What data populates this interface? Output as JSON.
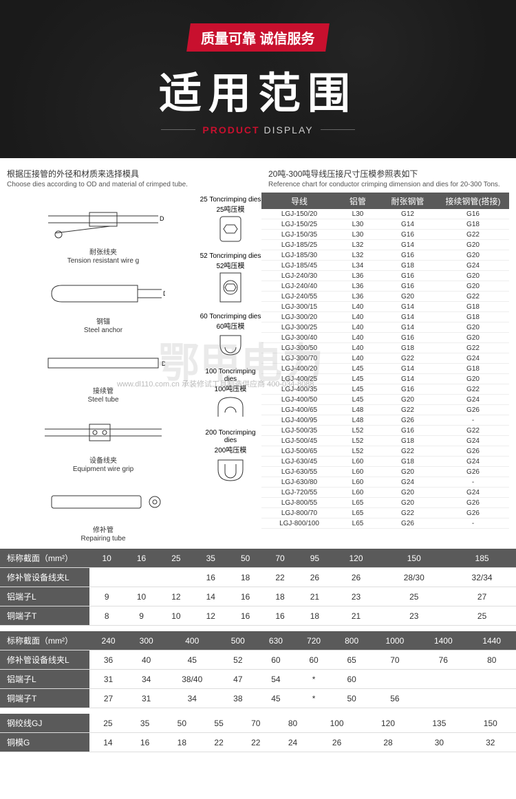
{
  "hero": {
    "badge": "质量可靠 诚信服务",
    "title": "适用范围",
    "subtitle_red": "PRODUCT",
    "subtitle_white": " DISPLAY"
  },
  "intro": {
    "left_cn": "根据压接管的外径和材质来选择模具",
    "left_en": "Choose dies according to OD and material of crimped tube.",
    "right_cn": "20吨-300吨导线压接尺寸压模参照表如下",
    "right_en": "Reference chart for conductor crimping dimension and dies for 20-300 Tons."
  },
  "diagrams": [
    {
      "cn": "耐张线夹",
      "en": "Tension resistant wire g"
    },
    {
      "cn": "钢锚",
      "en": "Steel anchor"
    },
    {
      "cn": "接续管",
      "en": "Steel tube"
    },
    {
      "cn": "设备线夹",
      "en": "Equipment wire grip"
    },
    {
      "cn": "修补管",
      "en": "Repairing tube"
    }
  ],
  "dies": [
    {
      "en": "25 Toncrimping dies",
      "cn": "25吨压模"
    },
    {
      "en": "52 Toncrimping dies",
      "cn": "52吨压模"
    },
    {
      "en": "60 Toncrimping dies",
      "cn": "60吨压模"
    },
    {
      "en": "100 Toncrimping dies",
      "cn": "100吨压模"
    },
    {
      "en": "200 Toncrimping dies",
      "cn": "200吨压模"
    }
  ],
  "ref_head": {
    "c1": "导线",
    "c2": "铝管",
    "c3": "耐张钢管",
    "c4": "接续钢管(搭接)"
  },
  "ref_rows": [
    [
      "LGJ-150/20",
      "L30",
      "G12",
      "G16"
    ],
    [
      "LGJ-150/25",
      "L30",
      "G14",
      "G18"
    ],
    [
      "LGJ-150/35",
      "L30",
      "G16",
      "G22"
    ],
    [
      "LGJ-185/25",
      "L32",
      "G14",
      "G20"
    ],
    [
      "LGJ-185/30",
      "L32",
      "G16",
      "G20"
    ],
    [
      "LGJ-185/45",
      "L34",
      "G18",
      "G24"
    ],
    [
      "LGJ-240/30",
      "L36",
      "G16",
      "G20"
    ],
    [
      "LGJ-240/40",
      "L36",
      "G16",
      "G20"
    ],
    [
      "LGJ-240/55",
      "L36",
      "G20",
      "G22"
    ],
    [
      "LGJ-300/15",
      "L40",
      "G14",
      "G18"
    ],
    [
      "LGJ-300/20",
      "L40",
      "G14",
      "G18"
    ],
    [
      "LGJ-300/25",
      "L40",
      "G14",
      "G20"
    ],
    [
      "LGJ-300/40",
      "L40",
      "G16",
      "G20"
    ],
    [
      "LGJ-300/50",
      "L40",
      "G18",
      "G22"
    ],
    [
      "LGJ-300/70",
      "L40",
      "G22",
      "G24"
    ],
    [
      "LGJ-400/20",
      "L45",
      "G14",
      "G18"
    ],
    [
      "LGJ-400/25",
      "L45",
      "G14",
      "G20"
    ],
    [
      "LGJ-400/35",
      "L45",
      "G16",
      "G22"
    ],
    [
      "LGJ-400/50",
      "L45",
      "G20",
      "G24"
    ],
    [
      "LGJ-400/65",
      "L48",
      "G22",
      "G26"
    ],
    [
      "LGJ-400/95",
      "L48",
      "G26",
      "-"
    ],
    [
      "LGJ-500/35",
      "L52",
      "G16",
      "G22"
    ],
    [
      "LGJ-500/45",
      "L52",
      "G18",
      "G24"
    ],
    [
      "LGJ-500/65",
      "L52",
      "G22",
      "G26"
    ],
    [
      "LGJ-630/45",
      "L60",
      "G18",
      "G24"
    ],
    [
      "LGJ-630/55",
      "L60",
      "G20",
      "G26"
    ],
    [
      "LGJ-630/80",
      "L60",
      "G24",
      "-"
    ],
    [
      "LGJ-720/55",
      "L60",
      "G20",
      "G24"
    ],
    [
      "LGJ-800/55",
      "L65",
      "G20",
      "G26"
    ],
    [
      "LGJ-800/70",
      "L65",
      "G22",
      "G26"
    ],
    [
      "LGJ-800/100",
      "L65",
      "G26",
      "-"
    ]
  ],
  "spec1": {
    "headers": [
      "标称截面（mm²）",
      "修补管设备线夹L",
      "铝端子L",
      "铜端子T"
    ],
    "cols": [
      "10",
      "16",
      "25",
      "35",
      "50",
      "70",
      "95",
      "120",
      "150",
      "185"
    ],
    "rows": [
      [
        "",
        "",
        "",
        "16",
        "18",
        "22",
        "26",
        "26",
        "28/30",
        "32/34"
      ],
      [
        "9",
        "10",
        "12",
        "14",
        "16",
        "18",
        "21",
        "23",
        "25",
        "27"
      ],
      [
        "8",
        "9",
        "10",
        "12",
        "16",
        "16",
        "18",
        "21",
        "23",
        "25"
      ]
    ]
  },
  "spec2": {
    "cols": [
      "240",
      "300",
      "400",
      "500",
      "630",
      "720",
      "800",
      "1000",
      "1400",
      "1440"
    ],
    "rows": [
      [
        "36",
        "40",
        "45",
        "52",
        "60",
        "60",
        "65",
        "70",
        "76",
        "80"
      ],
      [
        "31",
        "34",
        "38/40",
        "47",
        "54",
        "*",
        "60",
        "",
        "",
        ""
      ],
      [
        "27",
        "31",
        "34",
        "38",
        "45",
        "*",
        "50",
        "56",
        "",
        ""
      ]
    ]
  },
  "spec3": {
    "headers": [
      "钢绞线GJ",
      "铜模G"
    ],
    "rows": [
      [
        "25",
        "35",
        "50",
        "55",
        "70",
        "80",
        "100",
        "120",
        "135",
        "150"
      ],
      [
        "14",
        "16",
        "18",
        "22",
        "22",
        "24",
        "26",
        "28",
        "30",
        "32"
      ]
    ]
  },
  "watermark": {
    "big": "鄂甲电力",
    "small": "www.dl110.com.cn 承装修试工具制造供应商 400-034-8088"
  }
}
